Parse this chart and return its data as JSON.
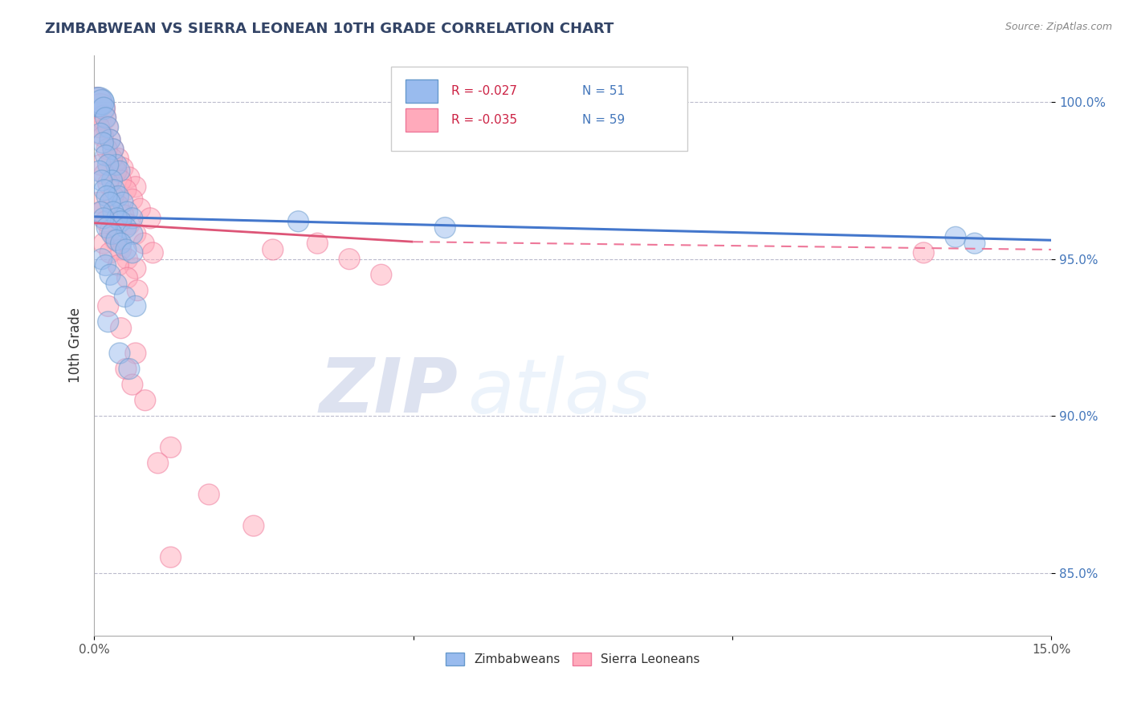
{
  "title": "ZIMBABWEAN VS SIERRA LEONEAN 10TH GRADE CORRELATION CHART",
  "source_text": "Source: ZipAtlas.com",
  "xlabel": "",
  "ylabel": "10th Grade",
  "xlim": [
    0.0,
    15.0
  ],
  "ylim": [
    83.0,
    101.5
  ],
  "x_ticks": [
    0.0,
    5.0,
    10.0,
    15.0
  ],
  "x_tick_labels": [
    "0.0%",
    "",
    "",
    "15.0%"
  ],
  "y_ticks": [
    85.0,
    90.0,
    95.0,
    100.0
  ],
  "y_tick_labels": [
    "85.0%",
    "90.0%",
    "95.0%",
    "100.0%"
  ],
  "legend_R": [
    -0.027,
    -0.035
  ],
  "legend_N": [
    51,
    59
  ],
  "blue_color": "#99BBEE",
  "pink_color": "#FFAABB",
  "blue_line_color": "#4477CC",
  "pink_line_color": "#DD5577",
  "blue_edge_color": "#6699CC",
  "pink_edge_color": "#EE7799",
  "watermark_ZIP": "ZIP",
  "watermark_atlas": "atlas",
  "zimbabwe_x": [
    0.05,
    0.08,
    0.12,
    0.15,
    0.18,
    0.22,
    0.25,
    0.3,
    0.35,
    0.4,
    0.1,
    0.14,
    0.18,
    0.22,
    0.28,
    0.32,
    0.38,
    0.45,
    0.52,
    0.6,
    0.08,
    0.12,
    0.16,
    0.2,
    0.25,
    0.3,
    0.36,
    0.42,
    0.5,
    0.6,
    0.1,
    0.15,
    0.2,
    0.28,
    0.35,
    0.42,
    0.5,
    0.6,
    0.12,
    0.18,
    0.25,
    0.35,
    0.48,
    0.65,
    0.22,
    0.4,
    0.55,
    3.2,
    5.5,
    13.5,
    13.8
  ],
  "zimbabwe_y": [
    100.0,
    100.0,
    100.0,
    99.8,
    99.5,
    99.2,
    98.8,
    98.5,
    98.0,
    97.8,
    99.0,
    98.7,
    98.3,
    98.0,
    97.5,
    97.2,
    97.0,
    96.8,
    96.5,
    96.3,
    97.8,
    97.5,
    97.2,
    97.0,
    96.8,
    96.5,
    96.3,
    96.2,
    96.0,
    95.8,
    96.5,
    96.3,
    96.0,
    95.8,
    95.6,
    95.5,
    95.3,
    95.2,
    95.0,
    94.8,
    94.5,
    94.2,
    93.8,
    93.5,
    93.0,
    92.0,
    91.5,
    96.2,
    96.0,
    95.7,
    95.5
  ],
  "zimbabwe_size": [
    700,
    700,
    500,
    400,
    350,
    350,
    350,
    350,
    350,
    350,
    350,
    350,
    350,
    350,
    350,
    350,
    350,
    350,
    350,
    350,
    350,
    350,
    350,
    350,
    350,
    350,
    350,
    350,
    350,
    350,
    350,
    350,
    350,
    350,
    350,
    350,
    350,
    350,
    350,
    350,
    350,
    350,
    350,
    350,
    350,
    350,
    350,
    350,
    350,
    350,
    350
  ],
  "sierraleone_x": [
    0.05,
    0.1,
    0.15,
    0.2,
    0.25,
    0.3,
    0.38,
    0.45,
    0.55,
    0.65,
    0.08,
    0.14,
    0.2,
    0.28,
    0.35,
    0.42,
    0.5,
    0.6,
    0.72,
    0.88,
    0.1,
    0.16,
    0.22,
    0.3,
    0.38,
    0.46,
    0.55,
    0.65,
    0.78,
    0.92,
    0.07,
    0.12,
    0.18,
    0.25,
    0.33,
    0.42,
    0.52,
    0.65,
    0.15,
    0.25,
    0.38,
    0.52,
    0.68,
    2.8,
    0.22,
    0.42,
    0.65,
    3.5,
    4.0,
    4.5,
    0.5,
    0.8,
    1.2,
    1.8,
    2.5,
    0.6,
    1.0,
    1.2,
    13.0
  ],
  "sierraleone_y": [
    100.0,
    99.8,
    99.5,
    99.2,
    98.8,
    98.5,
    98.2,
    97.9,
    97.6,
    97.3,
    99.2,
    98.9,
    98.5,
    98.2,
    97.8,
    97.5,
    97.2,
    96.9,
    96.6,
    96.3,
    98.0,
    97.7,
    97.4,
    97.0,
    96.7,
    96.4,
    96.1,
    95.8,
    95.5,
    95.2,
    96.8,
    96.5,
    96.2,
    95.9,
    95.6,
    95.3,
    95.0,
    94.7,
    95.5,
    95.2,
    94.8,
    94.4,
    94.0,
    95.3,
    93.5,
    92.8,
    92.0,
    95.5,
    95.0,
    94.5,
    91.5,
    90.5,
    89.0,
    87.5,
    86.5,
    91.0,
    88.5,
    85.5,
    95.2
  ],
  "sierraleone_size": [
    700,
    700,
    500,
    400,
    350,
    350,
    350,
    350,
    350,
    350,
    350,
    350,
    350,
    350,
    350,
    350,
    350,
    350,
    350,
    350,
    350,
    350,
    350,
    350,
    350,
    350,
    350,
    350,
    350,
    350,
    350,
    350,
    350,
    350,
    350,
    350,
    350,
    350,
    350,
    350,
    350,
    350,
    350,
    350,
    350,
    350,
    350,
    350,
    350,
    350,
    350,
    350,
    350,
    350,
    350,
    350,
    350,
    350,
    350
  ],
  "blue_trendline_y0": 96.35,
  "blue_trendline_y1": 95.6,
  "pink_solid_x0": 0.0,
  "pink_solid_x1": 5.0,
  "pink_solid_y0": 96.15,
  "pink_solid_y1": 95.55,
  "pink_dash_x0": 5.0,
  "pink_dash_x1": 15.0,
  "pink_dash_y0": 95.55,
  "pink_dash_y1": 95.3
}
